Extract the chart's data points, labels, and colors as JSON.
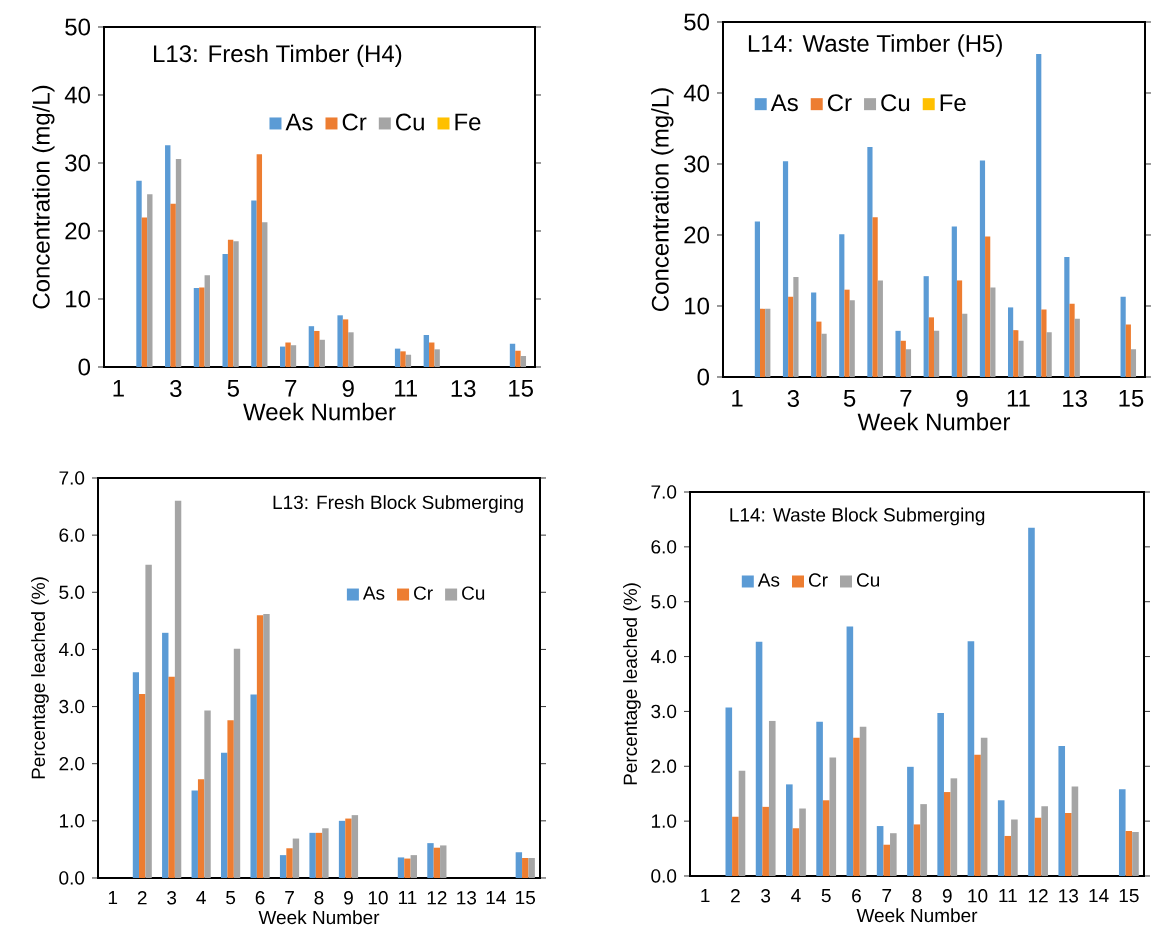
{
  "chart_data": [
    {
      "type": "bar",
      "title": "L13: Fresh Timber (H4)",
      "xlabel": "Week Number",
      "ylabel": "Concentration (mg/L)",
      "categories": [
        "1",
        null,
        "3",
        null,
        "5",
        null,
        "7",
        null,
        "9",
        null,
        "11",
        null,
        "13",
        null,
        "15"
      ],
      "series": [
        {
          "name": "As",
          "color": "#5b9bd5",
          "values": [
            null,
            27.4,
            32.6,
            11.6,
            16.6,
            24.5,
            3.0,
            6.0,
            7.6,
            null,
            2.7,
            4.7,
            null,
            null,
            3.4
          ]
        },
        {
          "name": "Cr",
          "color": "#ed7d31",
          "values": [
            null,
            22.0,
            24.0,
            11.7,
            18.7,
            31.3,
            3.6,
            5.3,
            7.0,
            null,
            2.3,
            3.6,
            null,
            null,
            2.4
          ]
        },
        {
          "name": "Cu",
          "color": "#a5a5a5",
          "values": [
            null,
            25.4,
            30.6,
            13.5,
            18.5,
            21.3,
            3.2,
            4.0,
            5.1,
            null,
            1.8,
            2.6,
            null,
            null,
            1.6
          ]
        },
        {
          "name": "Fe",
          "color": "#ffc000",
          "values": [
            null,
            0,
            0,
            0,
            0,
            0,
            0,
            0,
            0,
            null,
            0,
            0,
            null,
            null,
            0
          ]
        }
      ],
      "ylim": [
        0,
        50
      ],
      "yticks": [
        0,
        10,
        20,
        30,
        40,
        50
      ],
      "legend": "top right"
    },
    {
      "type": "bar",
      "title": "L14: Waste Timber (H5)",
      "xlabel": "Week Number",
      "ylabel": "Concentration (mg/L)",
      "categories": [
        "1",
        null,
        "3",
        null,
        "5",
        null,
        "7",
        null,
        "9",
        null,
        "11",
        null,
        "13",
        null,
        "15"
      ],
      "series": [
        {
          "name": "As",
          "color": "#5b9bd5",
          "values": [
            null,
            21.9,
            30.4,
            11.9,
            20.1,
            32.4,
            6.5,
            14.2,
            21.2,
            30.5,
            9.8,
            45.5,
            16.9,
            null,
            11.3
          ]
        },
        {
          "name": "Cr",
          "color": "#ed7d31",
          "values": [
            null,
            9.6,
            11.3,
            7.8,
            12.3,
            22.5,
            5.1,
            8.4,
            13.6,
            19.8,
            6.6,
            9.5,
            10.3,
            null,
            7.4
          ]
        },
        {
          "name": "Cu",
          "color": "#a5a5a5",
          "values": [
            null,
            9.6,
            14.1,
            6.1,
            10.8,
            13.6,
            3.9,
            6.5,
            8.9,
            12.6,
            5.1,
            6.3,
            8.2,
            null,
            3.9
          ]
        },
        {
          "name": "Fe",
          "color": "#ffc000",
          "values": [
            null,
            0,
            0,
            0,
            0,
            0,
            0,
            0,
            0,
            0,
            0,
            0,
            0,
            null,
            0
          ]
        }
      ],
      "ylim": [
        0,
        50
      ],
      "yticks": [
        0,
        10,
        20,
        30,
        40,
        50
      ],
      "legend": "top left"
    },
    {
      "type": "bar",
      "title": "L13: Fresh Block Submerging",
      "xlabel": "Week Number",
      "ylabel": "Percentage leached (%)",
      "categories": [
        "1",
        "2",
        "3",
        "4",
        "5",
        "6",
        "7",
        "8",
        "9",
        "10",
        "11",
        "12",
        "13",
        "14",
        "15"
      ],
      "series": [
        {
          "name": "As",
          "color": "#5b9bd5",
          "values": [
            null,
            3.6,
            4.29,
            1.53,
            2.19,
            3.21,
            0.4,
            0.79,
            1.0,
            null,
            0.36,
            0.61,
            null,
            null,
            0.45
          ]
        },
        {
          "name": "Cr",
          "color": "#ed7d31",
          "values": [
            null,
            3.22,
            3.52,
            1.73,
            2.76,
            4.6,
            0.52,
            0.79,
            1.04,
            null,
            0.34,
            0.53,
            null,
            null,
            0.35
          ]
        },
        {
          "name": "Cu",
          "color": "#a5a5a5",
          "values": [
            null,
            5.48,
            6.6,
            2.93,
            4.01,
            4.62,
            0.69,
            0.87,
            1.1,
            null,
            0.4,
            0.57,
            null,
            null,
            0.35
          ]
        }
      ],
      "ylim": [
        0,
        7
      ],
      "yticks": [
        {
          "value": 0,
          "label": "0.0"
        },
        {
          "value": 1,
          "label": "1.0"
        },
        {
          "value": 2,
          "label": "2.0"
        },
        {
          "value": 3,
          "label": "3.0"
        },
        {
          "value": 4,
          "label": "4.0"
        },
        {
          "value": 5,
          "label": "5.0"
        },
        {
          "value": 6,
          "label": "6.0"
        },
        {
          "value": 7,
          "label": "7.0"
        }
      ],
      "legend": "top right"
    },
    {
      "type": "bar",
      "title": "L14: Waste Block Submerging",
      "xlabel": "Week Number",
      "ylabel": "Percentage leached (%)",
      "categories": [
        "1",
        "2",
        "3",
        "4",
        "5",
        "6",
        "7",
        "8",
        "9",
        "10",
        "11",
        "12",
        "13",
        "14",
        "15"
      ],
      "series": [
        {
          "name": "As",
          "color": "#5b9bd5",
          "values": [
            null,
            3.07,
            4.27,
            1.67,
            2.81,
            4.55,
            0.91,
            1.99,
            2.97,
            4.28,
            1.38,
            6.35,
            2.37,
            null,
            1.58
          ]
        },
        {
          "name": "Cr",
          "color": "#ed7d31",
          "values": [
            null,
            1.08,
            1.26,
            0.87,
            1.38,
            2.52,
            0.57,
            0.94,
            1.53,
            2.21,
            0.73,
            1.06,
            1.15,
            null,
            0.82
          ]
        },
        {
          "name": "Cu",
          "color": "#a5a5a5",
          "values": [
            null,
            1.92,
            2.83,
            1.23,
            2.16,
            2.72,
            0.78,
            1.31,
            1.78,
            2.52,
            1.03,
            1.27,
            1.63,
            null,
            0.8
          ]
        }
      ],
      "ylim": [
        0,
        7
      ],
      "yticks": [
        {
          "value": 0,
          "label": "0.0"
        },
        {
          "value": 1,
          "label": "1.0"
        },
        {
          "value": 2,
          "label": "2.0"
        },
        {
          "value": 3,
          "label": "3.0"
        },
        {
          "value": 4,
          "label": "4.0"
        },
        {
          "value": 5,
          "label": "5.0"
        },
        {
          "value": 6,
          "label": "6.0"
        },
        {
          "value": 7,
          "label": "7.0"
        }
      ],
      "legend": "top left"
    }
  ]
}
